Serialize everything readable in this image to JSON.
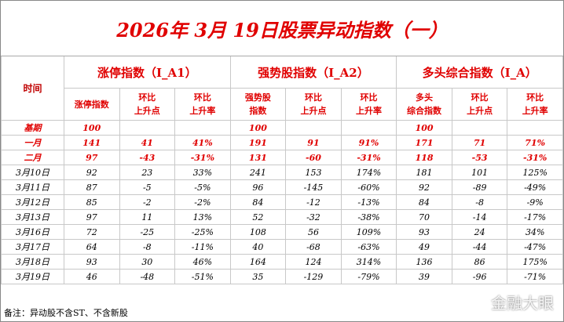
{
  "title": "2026年 3月 19日股票异动指数（一）",
  "header": {
    "time": "时间",
    "groups": [
      "涨停指数（I_A1）",
      "强势股指数（I_A2）",
      "多头综合指数（I_A）"
    ],
    "columns": [
      "涨停指数",
      "环比\n上升点",
      "环比\n上升率",
      "强势股\n指数",
      "环比\n上升点",
      "环比\n上升率",
      "多头\n综合指数",
      "环比\n上升点",
      "环比\n上升率"
    ]
  },
  "table": {
    "rows": [
      {
        "label": "基期",
        "cells": [
          100,
          null,
          null,
          100,
          null,
          null,
          100,
          null,
          null
        ]
      },
      {
        "label": "一月",
        "cells": [
          141,
          41,
          "41%",
          191,
          91,
          "91%",
          171,
          71,
          "71%"
        ]
      },
      {
        "label": "二月",
        "cells": [
          97,
          -43,
          "-31%",
          131,
          -60,
          "-31%",
          118,
          -53,
          "-31%"
        ]
      },
      {
        "label": "3月10日",
        "cells": [
          92,
          23,
          "33%",
          241,
          153,
          "174%",
          181,
          101,
          "125%"
        ]
      },
      {
        "label": "3月11日",
        "cells": [
          87,
          -5,
          "-5%",
          96,
          -145,
          "-60%",
          92,
          -89,
          "-49%"
        ]
      },
      {
        "label": "3月12日",
        "cells": [
          85,
          -2,
          "-2%",
          84,
          -12,
          "-13%",
          84,
          -8,
          "-9%"
        ]
      },
      {
        "label": "3月13日",
        "cells": [
          97,
          11,
          "13%",
          52,
          -32,
          "-38%",
          70,
          -14,
          "-17%"
        ]
      },
      {
        "label": "3月16日",
        "cells": [
          72,
          -25,
          "-25%",
          108,
          56,
          "109%",
          93,
          24,
          "34%"
        ]
      },
      {
        "label": "3月17日",
        "cells": [
          64,
          -8,
          "-11%",
          40,
          -68,
          "-63%",
          49,
          -44,
          "-47%"
        ]
      },
      {
        "label": "3月18日",
        "cells": [
          93,
          30,
          "46%",
          164,
          124,
          "314%",
          136,
          86,
          "175%"
        ]
      },
      {
        "label": "3月19日",
        "cells": [
          46,
          -48,
          "-51%",
          35,
          -129,
          "-79%",
          39,
          -96,
          "-71%"
        ]
      }
    ]
  },
  "footer": "备注：异动股不含ST、不含新股",
  "watermark": "金融大眼"
}
